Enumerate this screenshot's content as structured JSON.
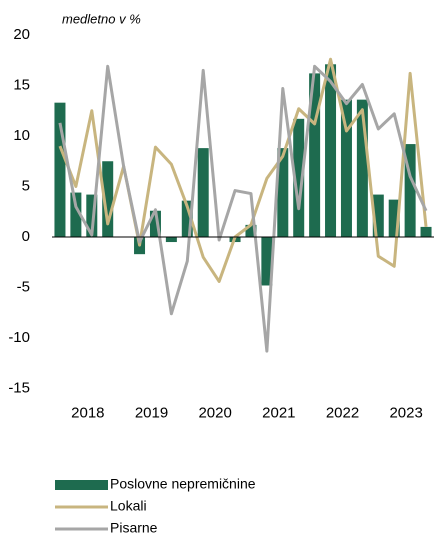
{
  "chart_data": {
    "type": "bar_line",
    "subtitle": "medletno v %",
    "categories": [
      "2018",
      null,
      null,
      null,
      "2019",
      null,
      null,
      null,
      "2020",
      null,
      null,
      null,
      "2021",
      null,
      null,
      null,
      "2022",
      null,
      null,
      null,
      "2023",
      null,
      null,
      null
    ],
    "series": [
      {
        "name": "Poslovne nepremičnine",
        "type": "bar",
        "color": "#1e6b4f",
        "values": [
          13.3,
          4.4,
          4.2,
          7.5,
          0,
          -1.7,
          2.6,
          -0.5,
          3.6,
          8.8,
          0,
          -0.5,
          1.2,
          -4.8,
          8.8,
          11.7,
          16.2,
          17.1,
          13.6,
          13.6,
          4.2,
          3.7,
          9.2,
          1.0
        ]
      },
      {
        "name": "Lokali",
        "type": "line",
        "color": "#c8b57f",
        "values": [
          9,
          5,
          12.5,
          1.3,
          7,
          -0.8,
          8.9,
          7.2,
          3,
          -2,
          -4.4,
          0,
          1.2,
          5.8,
          8,
          12.7,
          11.2,
          17.6,
          10.5,
          12.6,
          -1.9,
          -2.9,
          16.2,
          1.0
        ]
      },
      {
        "name": "Pisarne",
        "type": "line",
        "color": "#a6a6a6",
        "values": [
          11.3,
          3,
          0.2,
          16.9,
          7,
          -0.5,
          2.7,
          -7.6,
          -2.4,
          16.5,
          -0.3,
          4.6,
          4.3,
          -11.3,
          14.7,
          2.8,
          16.9,
          15.4,
          13.2,
          15.1,
          10.7,
          12.2,
          6,
          2.6
        ]
      }
    ],
    "ylim": [
      -15,
      20
    ],
    "yticks": [
      -15,
      -10,
      -5,
      0,
      5,
      10,
      15,
      20
    ],
    "grid": false
  }
}
